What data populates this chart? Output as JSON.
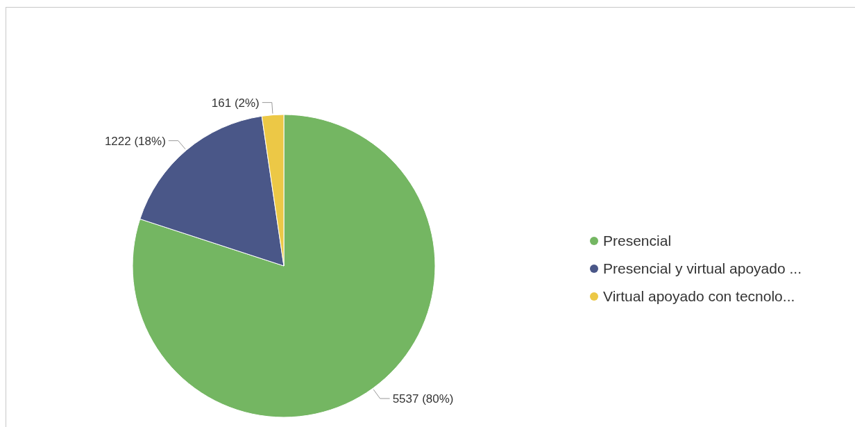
{
  "chart_data": {
    "type": "pie",
    "categories": [
      "Presencial",
      "Presencial y virtual apoyado ...",
      "Virtual apoyado con tecnolo..."
    ],
    "values": [
      5537,
      1222,
      161
    ],
    "colors": [
      "#74b662",
      "#4a5788",
      "#ecc846"
    ],
    "value_labels": [
      "5537 (80%)",
      "1222 (18%)",
      "161 (2%)"
    ],
    "legend": "right"
  }
}
